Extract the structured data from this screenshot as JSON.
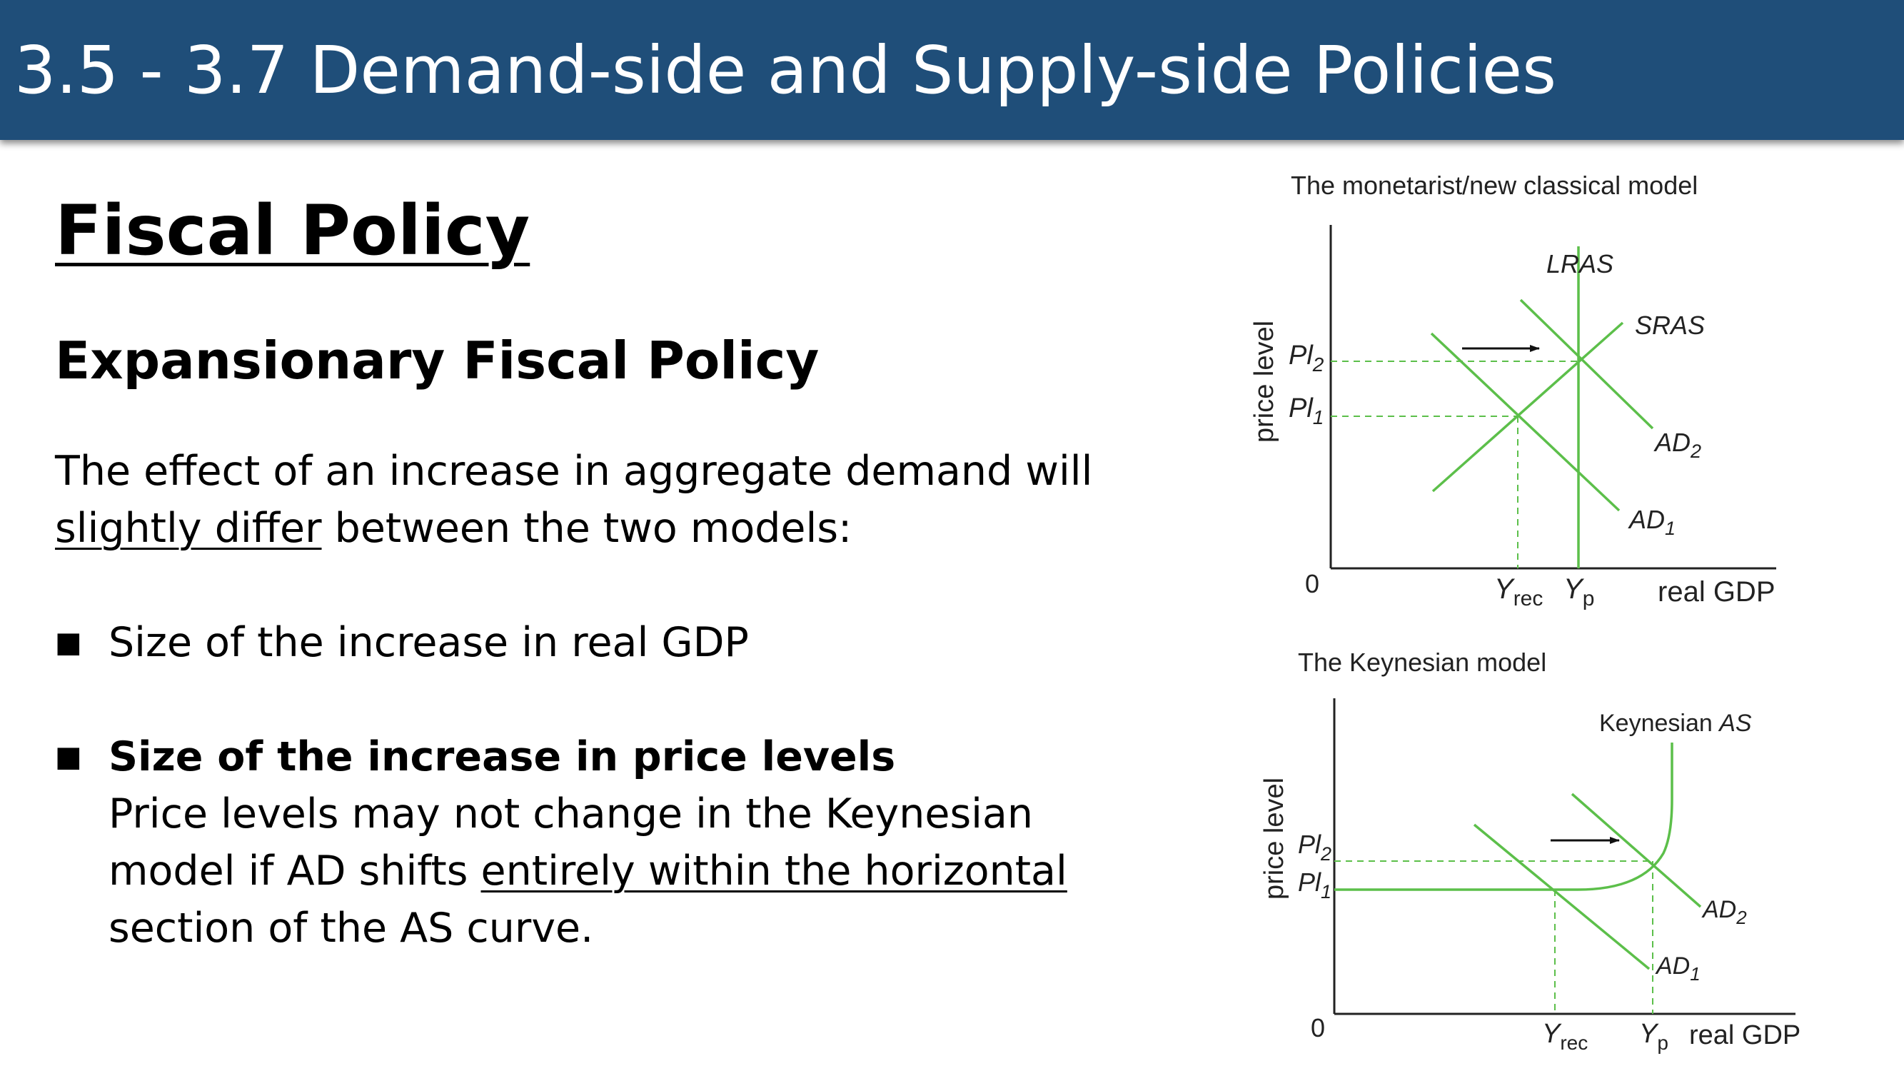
{
  "slide": {
    "title": "3.5 - 3.7 Demand-side and Supply-side Policies",
    "heading": "Fiscal Policy",
    "subheading": "Expansionary Fiscal Policy",
    "intro_line1": "The effect of an increase in aggregate demand will",
    "intro_underlined": "slightly differ",
    "intro_rest": " between the two models:",
    "bullets": [
      {
        "text": "Size of the increase in real GDP"
      },
      {
        "title": "Size of the increase in price levels",
        "line1": "Price levels may not change in the Keynesian",
        "line2_plain": "model if AD shifts ",
        "line2_underlined": "entirely within the horizontal",
        "line3": "section of the AS curve."
      }
    ],
    "bullet_icon": "square-bullet-icon"
  },
  "colors": {
    "title_bar": "#1f4e79",
    "curve_green": "#5cbf4a",
    "axis": "#222222"
  },
  "diagram_monetarist": {
    "title": "The monetarist/new classical model",
    "y_axis_label": "price level",
    "x_axis_label": "real GDP",
    "origin": "0",
    "pl2": "Pl",
    "pl2_sub": "2",
    "pl1": "Pl",
    "pl1_sub": "1",
    "yrec": "Y",
    "yrec_sub": "rec",
    "yp": "Y",
    "yp_sub": "p",
    "lras": "LRAS",
    "sras": "SRAS",
    "ad2": "AD",
    "ad2_sub": "2",
    "ad1": "AD",
    "ad1_sub": "1",
    "shift_icon": "right-arrow-icon"
  },
  "diagram_keynesian": {
    "title": "The Keynesian model",
    "y_axis_label": "price level",
    "x_axis_label": "real GDP",
    "origin": "0",
    "as_prefix": "Keynesian ",
    "as_italic": "AS",
    "pl2": "Pl",
    "pl2_sub": "2",
    "pl1": "Pl",
    "pl1_sub": "1",
    "yrec": "Y",
    "yrec_sub": "rec",
    "yp": "Y",
    "yp_sub": "p",
    "ad2": "AD",
    "ad2_sub": "2",
    "ad1": "AD",
    "ad1_sub": "1",
    "shift_icon": "right-arrow-icon"
  }
}
